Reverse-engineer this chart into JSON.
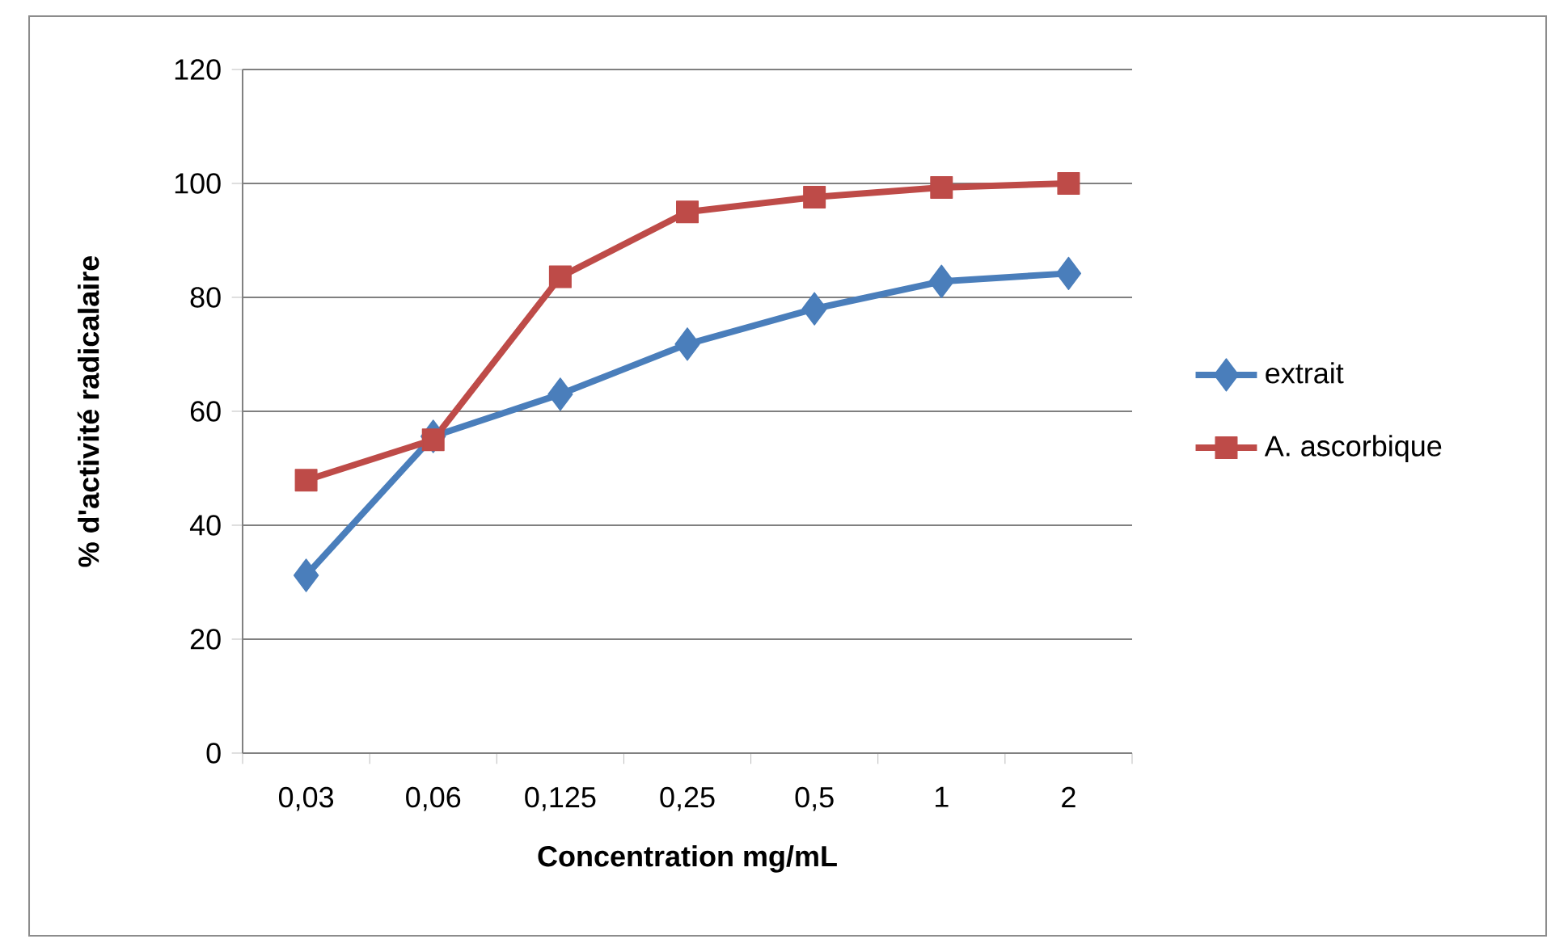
{
  "chart_data": {
    "type": "line",
    "xlabel": "Concentration mg/mL",
    "ylabel": "% d'activité radicalaire",
    "categories": [
      "0,03",
      "0,06",
      "0,125",
      "0,25",
      "0,5",
      "1",
      "2"
    ],
    "series": [
      {
        "name": "extrait",
        "color": "#4a7ebb",
        "marker": "diamond",
        "values": [
          31.2,
          55.6,
          63,
          71.8,
          78,
          82.8,
          84.2
        ]
      },
      {
        "name": "A. ascorbique",
        "color": "#be4b48",
        "marker": "square",
        "values": [
          47.9,
          55,
          83.6,
          95,
          97.6,
          99.3,
          100
        ]
      }
    ],
    "ylim": [
      0,
      120
    ],
    "yticks": [
      0,
      20,
      40,
      60,
      80,
      100,
      120
    ],
    "grid": "y",
    "legend": "right"
  }
}
